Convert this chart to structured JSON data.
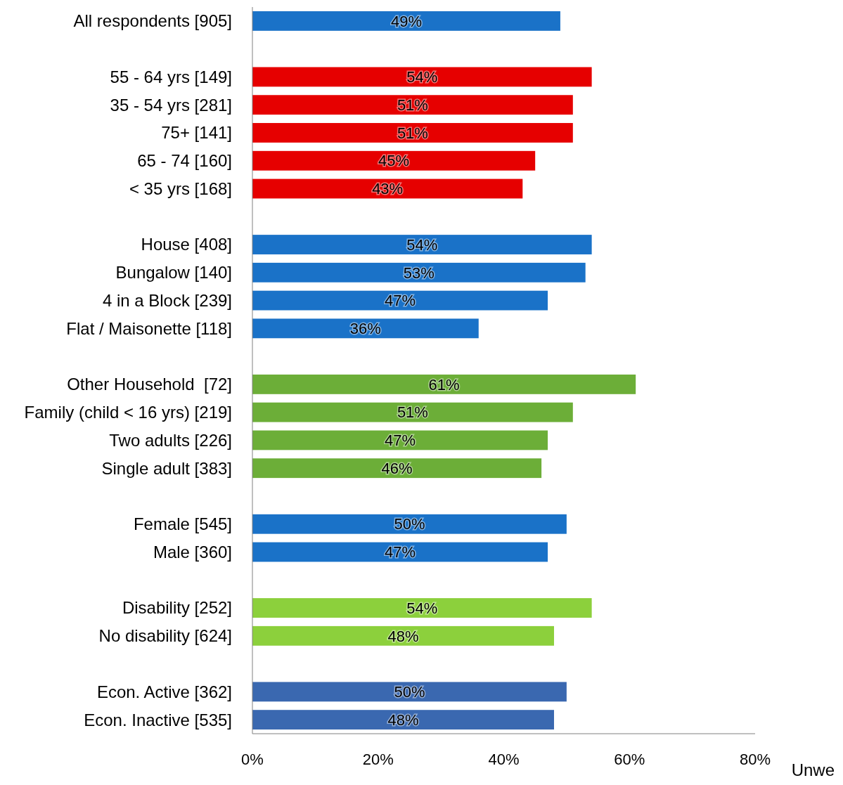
{
  "chart_data": {
    "type": "bar",
    "orientation": "horizontal",
    "categories": [
      "All respondents [905]",
      null,
      "55 - 64 yrs [149]",
      "35 - 54 yrs [281]",
      "75+ [141]",
      "65 - 74 [160]",
      "< 35 yrs [168]",
      null,
      "House [408]",
      "Bungalow [140]",
      "4 in a Block [239]",
      "Flat / Maisonette [118]",
      null,
      "Other Household  [72]",
      "Family (child < 16 yrs) [219]",
      "Two adults [226]",
      "Single adult [383]",
      null,
      "Female [545]",
      "Male [360]",
      null,
      "Disability [252]",
      "No disability [624]",
      null,
      "Econ. Active [362]",
      "Econ. Inactive [535]"
    ],
    "values": [
      49,
      null,
      54,
      51,
      51,
      45,
      43,
      null,
      54,
      53,
      47,
      36,
      null,
      61,
      51,
      47,
      46,
      null,
      50,
      47,
      null,
      54,
      48,
      null,
      50,
      48
    ],
    "value_labels": [
      "49%",
      null,
      "54%",
      "51%",
      "51%",
      "45%",
      "43%",
      null,
      "54%",
      "53%",
      "47%",
      "36%",
      null,
      "61%",
      "51%",
      "47%",
      "46%",
      null,
      "50%",
      "47%",
      null,
      "54%",
      "48%",
      null,
      "50%",
      "48%"
    ],
    "colors": [
      "#1a72c8",
      null,
      "#e60000",
      "#e60000",
      "#e60000",
      "#e60000",
      "#e60000",
      null,
      "#1a72c8",
      "#1a72c8",
      "#1a72c8",
      "#1a72c8",
      null,
      "#6cae38",
      "#6cae38",
      "#6cae38",
      "#6cae38",
      null,
      "#1a72c8",
      "#1a72c8",
      null,
      "#8cd03c",
      "#8cd03c",
      null,
      "#3a68b0",
      "#3a68b0"
    ],
    "xlim": [
      0,
      80
    ],
    "xticks": [
      {
        "value": 0,
        "label": "0%"
      },
      {
        "value": 20,
        "label": "20%"
      },
      {
        "value": 40,
        "label": "40%"
      },
      {
        "value": 60,
        "label": "60%"
      },
      {
        "value": 80,
        "label": "80%"
      }
    ],
    "annotations": [
      "Unwe"
    ]
  }
}
